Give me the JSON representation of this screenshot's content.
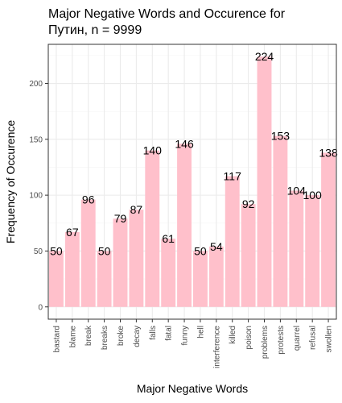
{
  "chart_data": {
    "type": "bar",
    "title_lines": [
      "Major Negative Words and Occurence for",
      "Путин, n = 9999"
    ],
    "xlabel": "Major Negative Words",
    "ylabel": "Frequency of Occurence",
    "categories": [
      "bastard",
      "blame",
      "break",
      "breaks",
      "broke",
      "decay",
      "falls",
      "fatal",
      "funny",
      "hell",
      "interference",
      "killed",
      "poison",
      "problems",
      "protests",
      "quarrel",
      "refusal",
      "swollen"
    ],
    "values": [
      50,
      67,
      96,
      50,
      79,
      87,
      140,
      61,
      146,
      50,
      54,
      117,
      92,
      224,
      153,
      104,
      100,
      138
    ],
    "yticks": [
      0,
      50,
      100,
      150,
      200
    ],
    "ylim": [
      -11,
      235
    ],
    "grid": true,
    "bar_color": "#ffc0cb",
    "panel_border_color": "#333333",
    "grid_major_color": "#ebebeb",
    "grid_minor_color": "#f4f4f4"
  }
}
